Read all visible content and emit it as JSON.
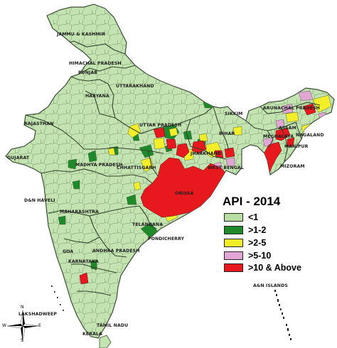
{
  "legend": {
    "title": "API - 2014",
    "items": [
      {
        "label": "<1",
        "color": "#b9dea4"
      },
      {
        "label": ">1-2",
        "color": "#1f8a2a"
      },
      {
        "label": ">2-5",
        "color": "#f3ee2a"
      },
      {
        "label": ">5-10",
        "color": "#e1a6d3"
      },
      {
        "label": ">10 & Above",
        "color": "#e8191e"
      }
    ]
  },
  "colors": {
    "base": "#c3e3b0",
    "border": "#5c6f57",
    "sea": "#ffffff"
  },
  "labels": {
    "jk": "JAMMU & KASHMIR",
    "hp": "HIMACHAL PRADESH",
    "pb": "PUNJAB",
    "uk": "UTTARAKHAND",
    "hr": "HARYANA",
    "rj": "RAJASTHAN",
    "up": "UTTAR PRADESH",
    "sk": "SIKKIM",
    "ar": "ARUNACHAL PRADESH",
    "br": "BIHAR",
    "as": "ASSAM",
    "ml": "MEGHALAYA",
    "nl": "NAGALAND",
    "mn": "MANIPUR",
    "jh": "JHARKHAND",
    "mz": "MIZORAM",
    "gj": "GUJARAT",
    "mp": "MADHYA PRADESH",
    "wb": "WEST BENGAL",
    "cg": "CHHATTISGARH",
    "or": "ORISSA",
    "dnh": "D&N HAVELI",
    "mh": "MAHARASHTRA",
    "tg": "TELANGANA",
    "py": "PONDICHERRY",
    "goa": "GOA",
    "ap": "ANDHRA PRADESH",
    "ka": "KARNATAKA",
    "an": "A&N ISLANDS",
    "ld": "LAKSHADWEEP",
    "tn": "TAMIL NADU",
    "kl": "KERALA"
  },
  "compass": {
    "n": "N",
    "s": "S",
    "e": "E",
    "w": "W"
  }
}
